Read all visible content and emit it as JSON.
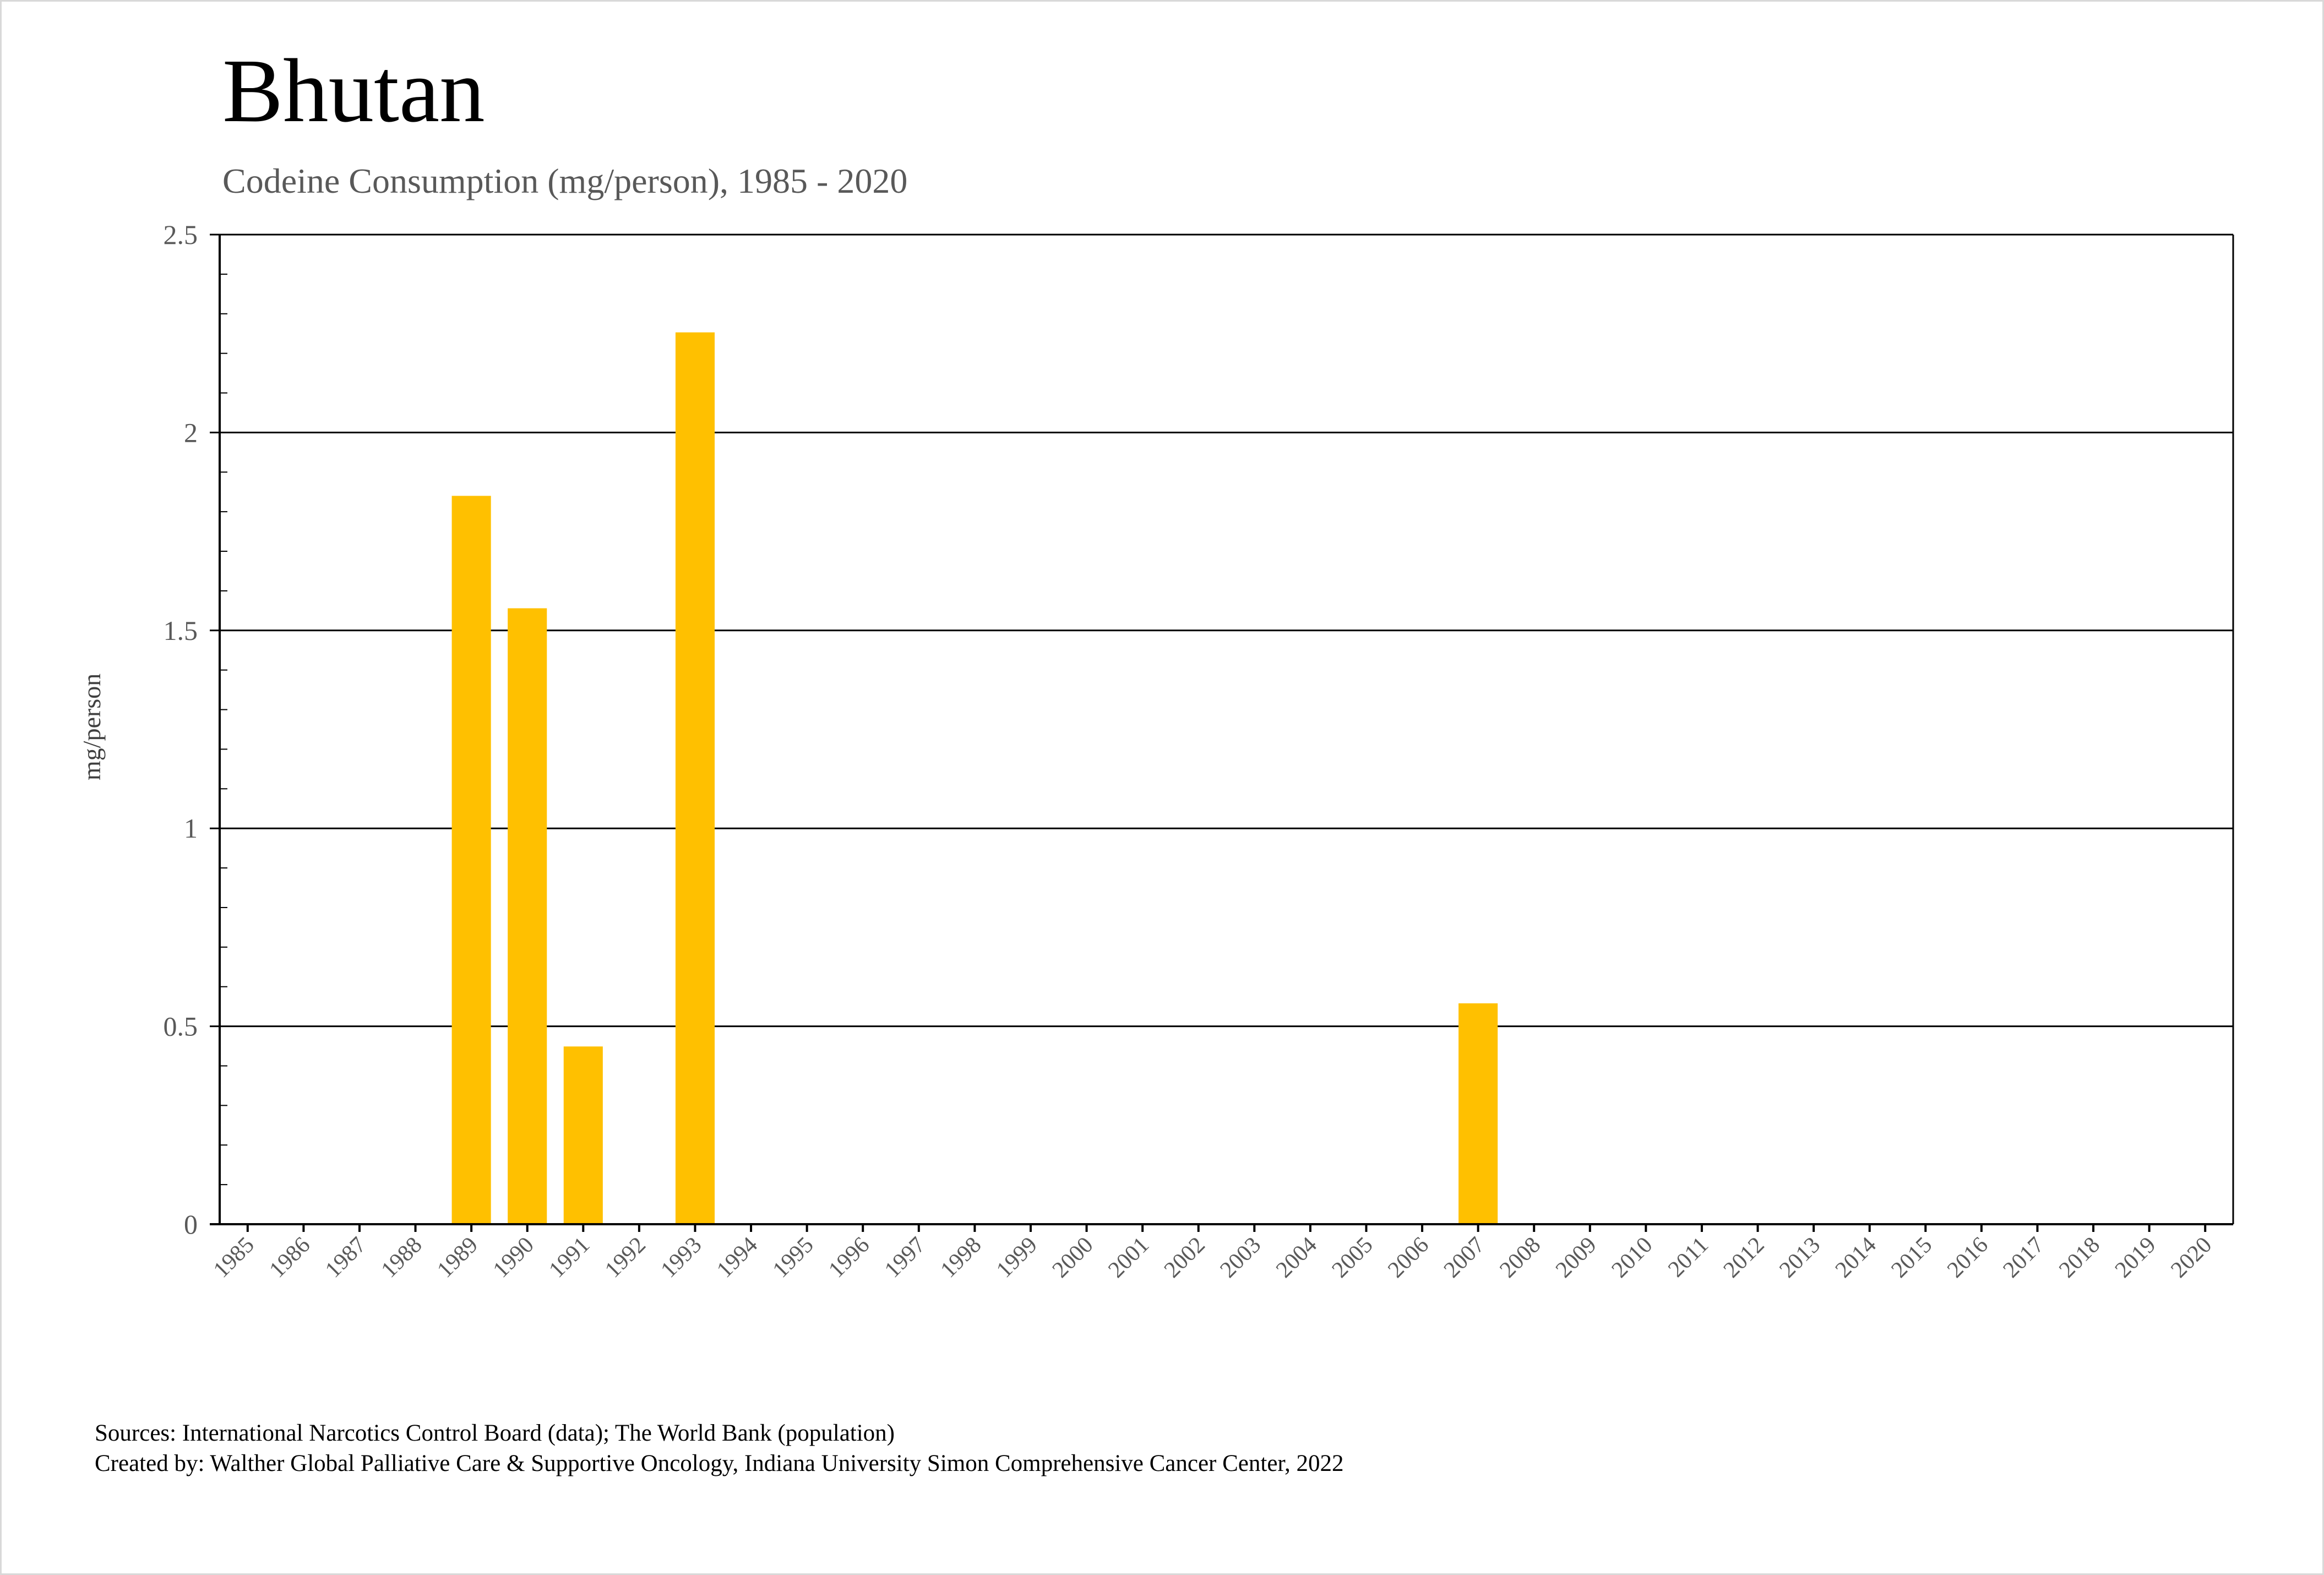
{
  "chart_data": {
    "type": "bar",
    "title": "Bhutan",
    "subtitle": "Codeine Consumption (mg/person), 1985 - 2020",
    "xlabel": "",
    "ylabel": "mg/person",
    "ylim": [
      0,
      2.5
    ],
    "yticks": [
      "0",
      "0.5",
      "1",
      "1.5",
      "2",
      "2.5"
    ],
    "ytick_values": [
      0,
      0.5,
      1,
      1.5,
      2,
      2.5
    ],
    "grid": true,
    "bar_color": "#FFC000",
    "categories": [
      "1985",
      "1986",
      "1987",
      "1988",
      "1989",
      "1990",
      "1991",
      "1992",
      "1993",
      "1994",
      "1995",
      "1996",
      "1997",
      "1998",
      "1999",
      "2000",
      "2001",
      "2002",
      "2003",
      "2004",
      "2005",
      "2006",
      "2007",
      "2008",
      "2009",
      "2010",
      "2011",
      "2012",
      "2013",
      "2014",
      "2015",
      "2016",
      "2017",
      "2018",
      "2019",
      "2020"
    ],
    "values": [
      0,
      0,
      0,
      0,
      1.84,
      1.556,
      0.449,
      0,
      2.253,
      0,
      0,
      0,
      0,
      0,
      0,
      0,
      0,
      0,
      0,
      0,
      0,
      0,
      0.558,
      0,
      0,
      0,
      0,
      0,
      0,
      0,
      0,
      0,
      0,
      0,
      0,
      0
    ]
  },
  "footer": {
    "sources": "Sources: International Narcotics Control Board (data); The World Bank (population)",
    "created_by": "Created by: Walther Global Palliative Care & Supportive Oncology, Indiana University Simon Comprehensive Cancer Center, 2022"
  }
}
